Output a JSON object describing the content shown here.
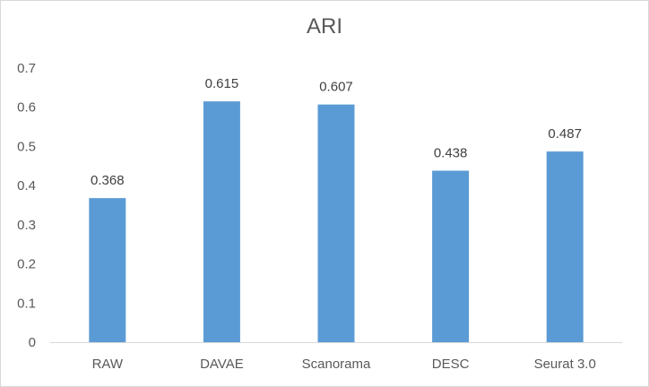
{
  "chart_data": {
    "type": "bar",
    "title": "ARI",
    "categories": [
      "RAW",
      "DAVAE",
      "Scanorama",
      "DESC",
      "Seurat 3.0"
    ],
    "values": [
      0.368,
      0.615,
      0.607,
      0.438,
      0.487
    ],
    "data_labels": [
      "0.368",
      "0.615",
      "0.607",
      "0.438",
      "0.487"
    ],
    "y_ticks": [
      "0",
      "0.1",
      "0.2",
      "0.3",
      "0.4",
      "0.5",
      "0.6",
      "0.7"
    ],
    "ylim": [
      0,
      0.7
    ],
    "grid": false,
    "bar_color": "#5B9BD5"
  }
}
